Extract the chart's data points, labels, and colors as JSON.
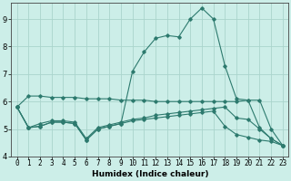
{
  "xlabel": "Humidex (Indice chaleur)",
  "background_color": "#cceee8",
  "grid_color": "#aad4cc",
  "line_color": "#2d7a6e",
  "x_values": [
    0,
    1,
    2,
    3,
    4,
    5,
    6,
    7,
    8,
    9,
    10,
    11,
    12,
    13,
    14,
    15,
    16,
    17,
    18,
    19,
    20,
    21,
    22,
    23
  ],
  "line1": [
    5.8,
    6.2,
    6.2,
    6.15,
    6.15,
    6.15,
    6.1,
    6.1,
    6.1,
    6.05,
    6.05,
    6.05,
    6.0,
    6.0,
    6.0,
    6.0,
    6.0,
    6.0,
    6.0,
    6.0,
    6.05,
    6.05,
    5.0,
    4.4
  ],
  "line2": [
    5.8,
    5.05,
    5.2,
    5.3,
    5.3,
    5.25,
    4.65,
    5.05,
    5.15,
    5.25,
    5.35,
    5.4,
    5.5,
    5.55,
    5.6,
    5.65,
    5.7,
    5.75,
    5.8,
    5.4,
    5.35,
    5.0,
    4.65,
    4.4
  ],
  "line3": [
    5.8,
    5.05,
    5.1,
    5.25,
    5.25,
    5.2,
    4.6,
    5.0,
    5.1,
    5.2,
    5.3,
    5.35,
    5.4,
    5.45,
    5.5,
    5.55,
    5.6,
    5.65,
    5.1,
    4.8,
    4.7,
    4.6,
    4.55,
    4.4
  ],
  "line4": [
    5.8,
    5.05,
    5.1,
    5.25,
    5.25,
    5.2,
    4.6,
    5.0,
    5.1,
    5.2,
    7.1,
    7.8,
    8.3,
    8.4,
    8.35,
    9.0,
    9.4,
    9.0,
    7.3,
    6.1,
    6.05,
    5.05,
    4.65,
    4.4
  ],
  "ylim": [
    4.0,
    9.6
  ],
  "xlim": [
    -0.5,
    23.5
  ],
  "yticks": [
    4,
    5,
    6,
    7,
    8,
    9
  ],
  "xticks": [
    0,
    1,
    2,
    3,
    4,
    5,
    6,
    7,
    8,
    9,
    10,
    11,
    12,
    13,
    14,
    15,
    16,
    17,
    18,
    19,
    20,
    21,
    22,
    23
  ],
  "xlabel_fontsize": 6.5,
  "tick_fontsize": 5.5,
  "ytick_fontsize": 6.0,
  "lw": 0.8,
  "ms": 1.8
}
